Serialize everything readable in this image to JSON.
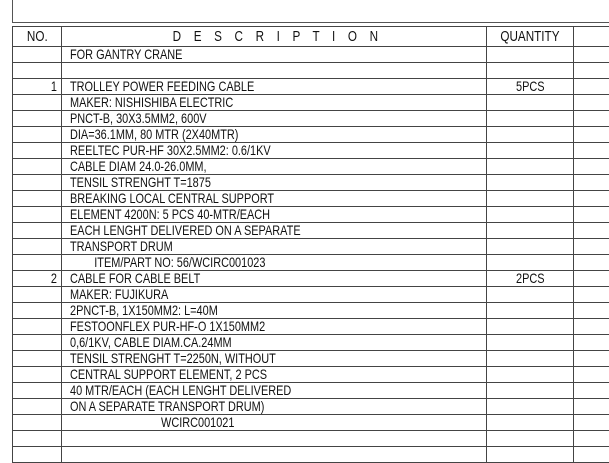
{
  "header": {
    "no": "NO.",
    "description": "D E S C R I P T I O N",
    "quantity": "QUANTITY",
    "extra": ""
  },
  "rows": [
    {
      "no": "",
      "desc": "FOR GANTRY CRANE",
      "qty": ""
    },
    {
      "no": "",
      "desc": "",
      "qty": ""
    },
    {
      "no": "1",
      "desc": "TROLLEY POWER FEEDING CABLE",
      "qty": "5PCS"
    },
    {
      "no": "",
      "desc": "MAKER: NISHISHIBA ELECTRIC",
      "qty": ""
    },
    {
      "no": "",
      "desc": "PNCT-B, 30X3.5MM2, 600V",
      "qty": ""
    },
    {
      "no": "",
      "desc": "DIA=36.1MM, 80 MTR (2X40MTR)",
      "qty": ""
    },
    {
      "no": "",
      "desc": "REELTEC PUR-HF 30X2.5MM2: 0.6/1KV",
      "qty": ""
    },
    {
      "no": "",
      "desc": "CABLE DIAM 24.0-26.0MM,",
      "qty": ""
    },
    {
      "no": "",
      "desc": "TENSIL STRENGHT T=1875",
      "qty": ""
    },
    {
      "no": "",
      "desc": "BREAKING LOCAL CENTRAL SUPPORT",
      "qty": ""
    },
    {
      "no": "",
      "desc": "ELEMENT 4200N: 5 PCS 40-MTR/EACH",
      "qty": ""
    },
    {
      "no": "",
      "desc": "EACH LENGHT DELIVERED ON A SEPARATE",
      "qty": ""
    },
    {
      "no": "",
      "desc": "TRANSPORT DRUM",
      "qty": ""
    },
    {
      "no": "",
      "desc": "        ITEM/PART NO: 56/WCIRC001023",
      "qty": ""
    },
    {
      "no": "2",
      "desc": "CABLE FOR CABLE BELT",
      "qty": "2PCS"
    },
    {
      "no": "",
      "desc": "MAKER: FUJIKURA",
      "qty": ""
    },
    {
      "no": "",
      "desc": "2PNCT-B, 1X150MM2: L=40M",
      "qty": ""
    },
    {
      "no": "",
      "desc": "FESTOONFLEX PUR-HF-O 1X150MM2",
      "qty": ""
    },
    {
      "no": "",
      "desc": "0,6/1KV, CABLE DIAM.CA.24MM",
      "qty": ""
    },
    {
      "no": "",
      "desc": "TENSIL STRENGHT T=2250N, WITHOUT",
      "qty": ""
    },
    {
      "no": "",
      "desc": "CENTRAL SUPPORT ELEMENT, 2 PCS",
      "qty": ""
    },
    {
      "no": "",
      "desc": "40 MTR/EACH (EACH LENGHT DELIVERED",
      "qty": ""
    },
    {
      "no": "",
      "desc": "ON A SEPARATE TRANSPORT DRUM)",
      "qty": ""
    },
    {
      "no": "",
      "desc": "                              WCIRC001021",
      "qty": ""
    },
    {
      "no": "",
      "desc": "",
      "qty": ""
    },
    {
      "no": "",
      "desc": "",
      "qty": ""
    }
  ]
}
